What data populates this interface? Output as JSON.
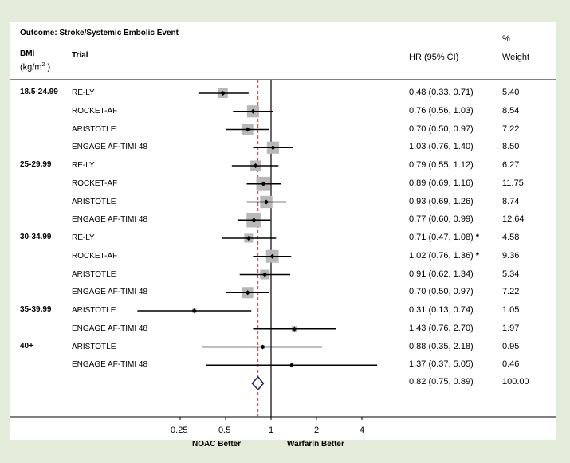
{
  "chart_data": {
    "type": "forest",
    "title": "Outcome: Stroke/Systemic Embolic Event",
    "headers": {
      "bmi": "BMI",
      "bmi_unit_open": "(kg/m",
      "bmi_unit_sup": "2",
      "bmi_unit_close": " )",
      "trial": "Trial",
      "hr": "HR (95% CI)",
      "weight_symbol": "%",
      "weight": "Weight"
    },
    "x_axis": {
      "scale": "log",
      "range": [
        0.125,
        5.7
      ],
      "ticks": [
        0.25,
        0.5,
        1,
        2,
        4
      ],
      "tick_labels": [
        "0.25",
        "0.5",
        "1",
        "2",
        "4"
      ],
      "reference_line": 1,
      "pooled_line": 0.82,
      "left_label": "NOAC Better",
      "right_label": "Warfarin Better"
    },
    "rows": [
      {
        "group": "18.5-24.99",
        "trial": "RE-LY",
        "hr": 0.48,
        "lo": 0.33,
        "hi": 0.71,
        "ci_text": "0.48 (0.33, 0.71)",
        "weight": "5.40",
        "star": false
      },
      {
        "group": "",
        "trial": "ROCKET-AF",
        "hr": 0.76,
        "lo": 0.56,
        "hi": 1.03,
        "ci_text": "0.76 (0.56, 1.03)",
        "weight": "8.54",
        "star": false
      },
      {
        "group": "",
        "trial": "ARISTOTLE",
        "hr": 0.7,
        "lo": 0.5,
        "hi": 0.97,
        "ci_text": "0.70 (0.50, 0.97)",
        "weight": "7.22",
        "star": false
      },
      {
        "group": "",
        "trial": "ENGAGE AF-TIMI 48",
        "hr": 1.03,
        "lo": 0.76,
        "hi": 1.4,
        "ci_text": "1.03 (0.76, 1.40)",
        "weight": "8.50",
        "star": false
      },
      {
        "group": "25-29.99",
        "trial": "RE-LY",
        "hr": 0.79,
        "lo": 0.55,
        "hi": 1.12,
        "ci_text": "0.79 (0.55, 1.12)",
        "weight": "6.27",
        "star": false
      },
      {
        "group": "",
        "trial": "ROCKET-AF",
        "hr": 0.89,
        "lo": 0.69,
        "hi": 1.16,
        "ci_text": "0.89 (0.69, 1.16)",
        "weight": "11.75",
        "star": false
      },
      {
        "group": "",
        "trial": "ARISTOTLE",
        "hr": 0.93,
        "lo": 0.69,
        "hi": 1.26,
        "ci_text": "0.93 (0.69, 1.26)",
        "weight": "8.74",
        "star": false
      },
      {
        "group": "",
        "trial": "ENGAGE AF-TIMI 48",
        "hr": 0.77,
        "lo": 0.6,
        "hi": 0.99,
        "ci_text": "0.77 (0.60, 0.99)",
        "weight": "12.64",
        "star": false
      },
      {
        "group": "30-34.99",
        "trial": "RE-LY",
        "hr": 0.71,
        "lo": 0.47,
        "hi": 1.08,
        "ci_text": "0.71 (0.47, 1.08)",
        "weight": "4.58",
        "star": true
      },
      {
        "group": "",
        "trial": "ROCKET-AF",
        "hr": 1.02,
        "lo": 0.76,
        "hi": 1.36,
        "ci_text": "1.02 (0.76, 1.36)",
        "weight": "9.36",
        "star": true
      },
      {
        "group": "",
        "trial": "ARISTOTLE",
        "hr": 0.91,
        "lo": 0.62,
        "hi": 1.34,
        "ci_text": "0.91 (0.62, 1.34)",
        "weight": "5.34",
        "star": false
      },
      {
        "group": "",
        "trial": "ENGAGE AF-TIMI 48",
        "hr": 0.7,
        "lo": 0.5,
        "hi": 0.97,
        "ci_text": "0.70 (0.50, 0.97)",
        "weight": "7.22",
        "star": false
      },
      {
        "group": "35-39.99",
        "trial": "ARISTOTLE",
        "hr": 0.31,
        "lo": 0.13,
        "hi": 0.74,
        "ci_text": "0.31 (0.13, 0.74)",
        "weight": "1.05",
        "star": false
      },
      {
        "group": "",
        "trial": "ENGAGE AF-TIMI 48",
        "hr": 1.43,
        "lo": 0.76,
        "hi": 2.7,
        "ci_text": "1.43 (0.76, 2.70)",
        "weight": "1.97",
        "star": false
      },
      {
        "group": "40+",
        "trial": "ARISTOTLE",
        "hr": 0.88,
        "lo": 0.35,
        "hi": 2.18,
        "ci_text": "0.88 (0.35, 2.18)",
        "weight": "0.95",
        "star": false
      },
      {
        "group": "",
        "trial": "ENGAGE AF-TIMI 48",
        "hr": 1.37,
        "lo": 0.37,
        "hi": 5.05,
        "ci_text": "1.37 (0.37, 5.05)",
        "weight": "0.46",
        "star": false
      }
    ],
    "overall": {
      "hr": 0.82,
      "lo": 0.75,
      "hi": 0.89,
      "ci_text": "0.82 (0.75, 0.89)",
      "weight": "100.00"
    },
    "star_symbol": "*",
    "colors": {
      "background": "#e3ecd9",
      "panel": "#ffffff",
      "weight_box": "#b8b8b8",
      "point": "#000000",
      "pooled_line": "#c0392b",
      "diamond": "#1f2f6e"
    }
  }
}
